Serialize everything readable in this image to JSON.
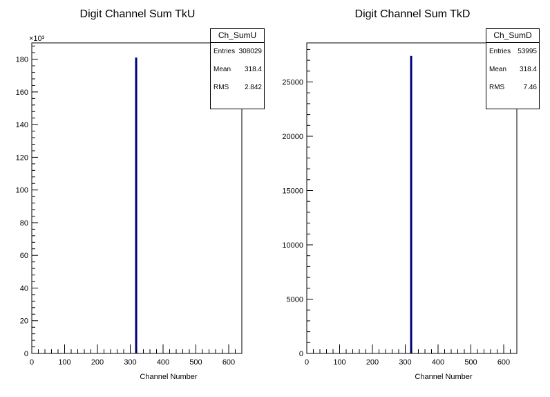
{
  "chart_data": [
    {
      "type": "bar",
      "title": "Digit Channel Sum TkU",
      "xlabel": "Channel Number",
      "ylabel": "",
      "xlim": [
        0,
        640
      ],
      "ylim": [
        0,
        190
      ],
      "y_multiplier_label": "×10³",
      "x_ticks": [
        0,
        100,
        200,
        300,
        400,
        500,
        600
      ],
      "y_ticks": [
        0,
        20,
        40,
        60,
        80,
        100,
        120,
        140,
        160,
        180
      ],
      "bins": [
        {
          "x": 318,
          "y": 181
        }
      ],
      "bar_color": "#000080",
      "stats": {
        "name": "Ch_SumU",
        "rows": [
          {
            "label": "Entries",
            "value": "308029"
          },
          {
            "label": "Mean",
            "value": "318.4"
          },
          {
            "label": "RMS",
            "value": "2.842"
          }
        ]
      }
    },
    {
      "type": "bar",
      "title": "Digit Channel Sum TkD",
      "xlabel": "Channel Number",
      "ylabel": "",
      "xlim": [
        0,
        640
      ],
      "ylim": [
        0,
        28600
      ],
      "y_multiplier_label": "",
      "x_ticks": [
        0,
        100,
        200,
        300,
        400,
        500,
        600
      ],
      "y_ticks": [
        0,
        5000,
        10000,
        15000,
        20000,
        25000
      ],
      "bins": [
        {
          "x": 318,
          "y": 27400
        }
      ],
      "bar_color": "#000080",
      "stats": {
        "name": "Ch_SumD",
        "rows": [
          {
            "label": "Entries",
            "value": "53995"
          },
          {
            "label": "Mean",
            "value": "318.4"
          },
          {
            "label": "RMS",
            "value": "7.46"
          }
        ]
      }
    }
  ]
}
